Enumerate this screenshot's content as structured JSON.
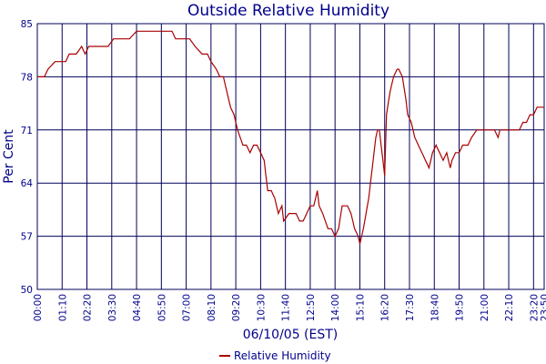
{
  "chart_data": {
    "type": "line",
    "title": "Outside Relative Humidity",
    "xlabel": "06/10/05 (EST)",
    "ylabel": "Per Cent",
    "ylim": [
      50,
      85
    ],
    "yticks": [
      50,
      57,
      64,
      71,
      78,
      85
    ],
    "xlim_minutes": [
      0,
      1430
    ],
    "xticks": [
      {
        "label": "00:00",
        "minutes": 0
      },
      {
        "label": "01:10",
        "minutes": 70
      },
      {
        "label": "02:20",
        "minutes": 140
      },
      {
        "label": "03:30",
        "minutes": 210
      },
      {
        "label": "04:40",
        "minutes": 280
      },
      {
        "label": "05:50",
        "minutes": 350
      },
      {
        "label": "07:00",
        "minutes": 420
      },
      {
        "label": "08:10",
        "minutes": 490
      },
      {
        "label": "09:20",
        "minutes": 560
      },
      {
        "label": "10:30",
        "minutes": 630
      },
      {
        "label": "11:40",
        "minutes": 700
      },
      {
        "label": "12:50",
        "minutes": 770
      },
      {
        "label": "14:00",
        "minutes": 840
      },
      {
        "label": "15:10",
        "minutes": 910
      },
      {
        "label": "16:20",
        "minutes": 980
      },
      {
        "label": "17:30",
        "minutes": 1050
      },
      {
        "label": "18:40",
        "minutes": 1120
      },
      {
        "label": "19:50",
        "minutes": 1190
      },
      {
        "label": "21:00",
        "minutes": 1260
      },
      {
        "label": "22:10",
        "minutes": 1330
      },
      {
        "label": "23:20",
        "minutes": 1400
      },
      {
        "label": "23:50",
        "minutes": 1430
      }
    ],
    "grid": true,
    "legend_position": "bottom-center",
    "series": [
      {
        "name": "Relative Humidity",
        "color": "#aa0000",
        "points": [
          [
            "00:00",
            78
          ],
          [
            "00:20",
            78
          ],
          [
            "00:30",
            79
          ],
          [
            "00:50",
            80
          ],
          [
            "01:20",
            80
          ],
          [
            "01:30",
            81
          ],
          [
            "01:50",
            81
          ],
          [
            "02:05",
            82
          ],
          [
            "02:15",
            81
          ],
          [
            "02:25",
            82
          ],
          [
            "03:20",
            82
          ],
          [
            "03:35",
            83
          ],
          [
            "04:20",
            83
          ],
          [
            "04:40",
            84
          ],
          [
            "05:40",
            84
          ],
          [
            "06:05",
            84
          ],
          [
            "06:20",
            84
          ],
          [
            "06:30",
            83
          ],
          [
            "07:10",
            83
          ],
          [
            "07:25",
            82
          ],
          [
            "07:45",
            81
          ],
          [
            "08:00",
            81
          ],
          [
            "08:10",
            80
          ],
          [
            "08:25",
            79
          ],
          [
            "08:35",
            78
          ],
          [
            "08:45",
            78
          ],
          [
            "08:55",
            76
          ],
          [
            "09:05",
            74
          ],
          [
            "09:15",
            73
          ],
          [
            "09:25",
            71
          ],
          [
            "09:40",
            69
          ],
          [
            "09:50",
            69
          ],
          [
            "10:00",
            68
          ],
          [
            "10:10",
            69
          ],
          [
            "10:20",
            69
          ],
          [
            "10:30",
            68
          ],
          [
            "10:40",
            67
          ],
          [
            "10:50",
            63
          ],
          [
            "11:00",
            63
          ],
          [
            "11:10",
            62
          ],
          [
            "11:20",
            60
          ],
          [
            "11:30",
            61
          ],
          [
            "11:35",
            59
          ],
          [
            "11:50",
            60
          ],
          [
            "12:00",
            60
          ],
          [
            "12:10",
            60
          ],
          [
            "12:20",
            59
          ],
          [
            "12:30",
            59
          ],
          [
            "12:40",
            60
          ],
          [
            "12:50",
            61
          ],
          [
            "13:00",
            61
          ],
          [
            "13:10",
            63
          ],
          [
            "13:15",
            61
          ],
          [
            "13:25",
            60
          ],
          [
            "13:40",
            58
          ],
          [
            "13:50",
            58
          ],
          [
            "14:00",
            57
          ],
          [
            "14:10",
            58
          ],
          [
            "14:20",
            61
          ],
          [
            "14:35",
            61
          ],
          [
            "14:45",
            60
          ],
          [
            "14:55",
            58
          ],
          [
            "15:05",
            57
          ],
          [
            "15:10",
            56
          ],
          [
            "15:20",
            58
          ],
          [
            "15:35",
            62
          ],
          [
            "15:45",
            66
          ],
          [
            "15:55",
            70
          ],
          [
            "16:00",
            71
          ],
          [
            "16:05",
            71
          ],
          [
            "16:15",
            67
          ],
          [
            "16:20",
            65
          ],
          [
            "16:25",
            73
          ],
          [
            "16:35",
            76
          ],
          [
            "16:45",
            78
          ],
          [
            "16:55",
            79
          ],
          [
            "17:00",
            79
          ],
          [
            "17:10",
            78
          ],
          [
            "17:20",
            75
          ],
          [
            "17:25",
            73
          ],
          [
            "17:35",
            72
          ],
          [
            "17:45",
            70
          ],
          [
            "17:55",
            69
          ],
          [
            "18:05",
            68
          ],
          [
            "18:15",
            67
          ],
          [
            "18:25",
            66
          ],
          [
            "18:35",
            68
          ],
          [
            "18:45",
            69
          ],
          [
            "18:55",
            68
          ],
          [
            "19:05",
            67
          ],
          [
            "19:15",
            68
          ],
          [
            "19:25",
            66
          ],
          [
            "19:30",
            67
          ],
          [
            "19:40",
            68
          ],
          [
            "19:50",
            68
          ],
          [
            "20:00",
            69
          ],
          [
            "20:15",
            69
          ],
          [
            "20:25",
            70
          ],
          [
            "20:40",
            71
          ],
          [
            "21:00",
            71
          ],
          [
            "21:15",
            71
          ],
          [
            "21:30",
            71
          ],
          [
            "21:40",
            70
          ],
          [
            "21:45",
            71
          ],
          [
            "22:00",
            71
          ],
          [
            "22:40",
            71
          ],
          [
            "22:50",
            72
          ],
          [
            "23:00",
            72
          ],
          [
            "23:10",
            73
          ],
          [
            "23:20",
            73
          ],
          [
            "23:30",
            74
          ],
          [
            "23:50",
            74
          ]
        ]
      }
    ]
  }
}
